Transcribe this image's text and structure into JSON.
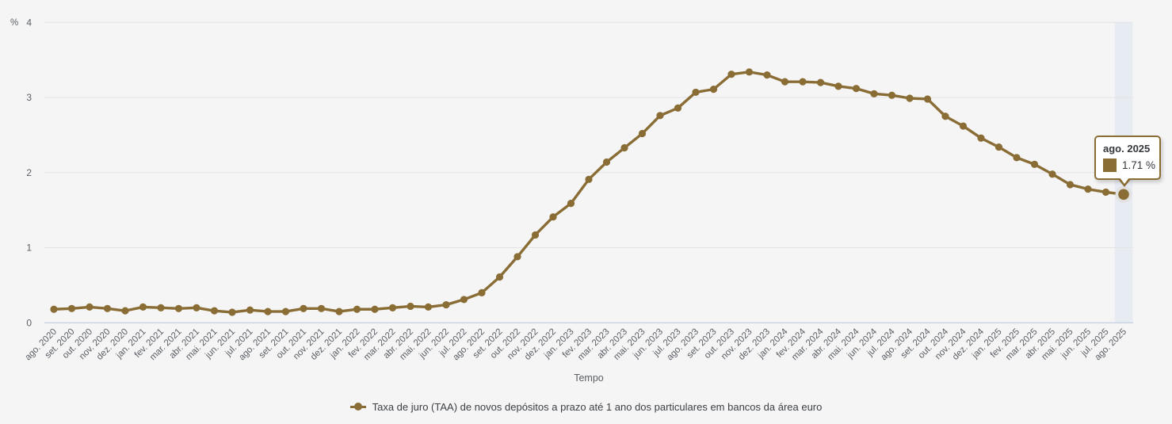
{
  "chart_data": {
    "type": "line",
    "title": "",
    "unit_label": "%",
    "xlabel": "Tempo",
    "ylabel": "%",
    "ylim": [
      0,
      4
    ],
    "yticks": [
      0,
      1,
      2,
      3,
      4
    ],
    "grid": true,
    "legend_position": "bottom-center",
    "line_color": "#8a6d35",
    "highlight_band_color": "#e7ebf2",
    "baseline_color": "#b9c8dc",
    "gridline_color": "#e4e4e5",
    "axis_text_color": "#5a5e64",
    "legend": "Taxa de juro (TAA) de novos depósitos a prazo até 1 ano dos particulares em bancos da área euro",
    "categories": [
      "ago. 2020",
      "set. 2020",
      "out. 2020",
      "nov. 2020",
      "dez. 2020",
      "jan. 2021",
      "fev. 2021",
      "mar. 2021",
      "abr. 2021",
      "mai. 2021",
      "jun. 2021",
      "jul. 2021",
      "ago. 2021",
      "set. 2021",
      "out. 2021",
      "nov. 2021",
      "dez. 2021",
      "jan. 2022",
      "fev. 2022",
      "mar. 2022",
      "abr. 2022",
      "mai. 2022",
      "jun. 2022",
      "jul. 2022",
      "ago. 2022",
      "set. 2022",
      "out. 2022",
      "nov. 2022",
      "dez. 2022",
      "jan. 2023",
      "fev. 2023",
      "mar. 2023",
      "abr. 2023",
      "mai. 2023",
      "jun. 2023",
      "jul. 2023",
      "ago. 2023",
      "set. 2023",
      "out. 2023",
      "nov. 2023",
      "dez. 2023",
      "jan. 2024",
      "fev. 2024",
      "mar. 2024",
      "abr. 2024",
      "mai. 2024",
      "jun. 2024",
      "jul. 2024",
      "ago. 2024",
      "set. 2024",
      "out. 2024",
      "nov. 2024",
      "dez. 2024",
      "jan. 2025",
      "fev. 2025",
      "mar. 2025",
      "abr. 2025",
      "mai. 2025",
      "jun. 2025",
      "jul. 2025",
      "ago. 2025"
    ],
    "values": [
      0.18,
      0.19,
      0.21,
      0.19,
      0.16,
      0.21,
      0.2,
      0.19,
      0.2,
      0.16,
      0.14,
      0.17,
      0.15,
      0.15,
      0.19,
      0.19,
      0.15,
      0.18,
      0.18,
      0.2,
      0.22,
      0.21,
      0.24,
      0.31,
      0.4,
      0.61,
      0.88,
      1.17,
      1.41,
      1.59,
      1.91,
      2.14,
      2.33,
      2.52,
      2.76,
      2.86,
      3.07,
      3.11,
      3.31,
      3.34,
      3.3,
      3.21,
      3.21,
      3.2,
      3.15,
      3.12,
      3.05,
      3.03,
      2.99,
      2.98,
      2.75,
      2.62,
      2.46,
      2.34,
      2.2,
      2.11,
      1.98,
      1.84,
      1.78,
      1.74,
      1.71
    ],
    "highlight_index": 60,
    "tooltip": {
      "label": "ago. 2025",
      "value": "1.71 %"
    }
  }
}
